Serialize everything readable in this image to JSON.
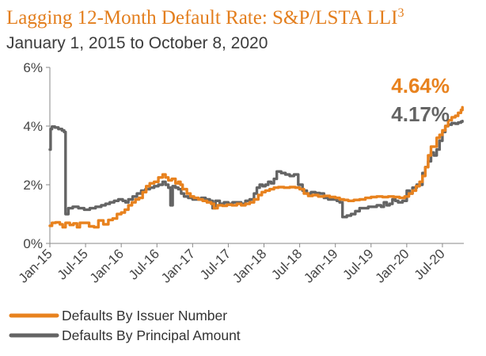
{
  "chart_data": {
    "type": "line",
    "title": "Lagging 12-Month Default Rate: S&P/LSTA LLI",
    "title_superscript": "3",
    "subtitle": "January 1, 2015 to October 8, 2020",
    "xlabel": "",
    "ylabel": "",
    "ylim": [
      0,
      6
    ],
    "y_ticks": [
      "0%",
      "2%",
      "4%",
      "6%"
    ],
    "x_range": [
      2015.0,
      2020.8
    ],
    "x_ticks": [
      {
        "label": "Jan-15",
        "x": 2015.0
      },
      {
        "label": "Jul-15",
        "x": 2015.5
      },
      {
        "label": "Jan-16",
        "x": 2016.0
      },
      {
        "label": "Jul-16",
        "x": 2016.5
      },
      {
        "label": "Jan-17",
        "x": 2017.0
      },
      {
        "label": "Jul-17",
        "x": 2017.5
      },
      {
        "label": "Jan-18",
        "x": 2018.0
      },
      {
        "label": "Jul-18",
        "x": 2018.5
      },
      {
        "label": "Jan-19",
        "x": 2019.0
      },
      {
        "label": "Jul-19",
        "x": 2019.5
      },
      {
        "label": "Jan-20",
        "x": 2020.0
      },
      {
        "label": "Jul-20",
        "x": 2020.5
      }
    ],
    "grid": false,
    "legend_position": "bottom-left",
    "series": [
      {
        "name": "Defaults By Issuer Number",
        "color": "#e8821e",
        "points": [
          [
            2015.0,
            0.6
          ],
          [
            2015.03,
            0.7
          ],
          [
            2015.08,
            0.72
          ],
          [
            2015.14,
            0.65
          ],
          [
            2015.18,
            0.55
          ],
          [
            2015.22,
            0.7
          ],
          [
            2015.28,
            0.63
          ],
          [
            2015.33,
            0.68
          ],
          [
            2015.38,
            0.55
          ],
          [
            2015.42,
            0.7
          ],
          [
            2015.48,
            0.7
          ],
          [
            2015.55,
            0.58
          ],
          [
            2015.62,
            0.55
          ],
          [
            2015.68,
            0.78
          ],
          [
            2015.75,
            0.65
          ],
          [
            2015.82,
            0.8
          ],
          [
            2015.88,
            0.85
          ],
          [
            2015.94,
            1.0
          ],
          [
            2016.0,
            1.05
          ],
          [
            2016.05,
            1.15
          ],
          [
            2016.1,
            1.3
          ],
          [
            2016.15,
            1.4
          ],
          [
            2016.2,
            1.5
          ],
          [
            2016.25,
            1.55
          ],
          [
            2016.3,
            1.75
          ],
          [
            2016.35,
            1.95
          ],
          [
            2016.4,
            2.05
          ],
          [
            2016.46,
            2.1
          ],
          [
            2016.52,
            2.25
          ],
          [
            2016.58,
            2.35
          ],
          [
            2016.62,
            2.25
          ],
          [
            2016.66,
            2.15
          ],
          [
            2016.71,
            2.2
          ],
          [
            2016.76,
            2.05
          ],
          [
            2016.8,
            2.1
          ],
          [
            2016.83,
            2.0
          ],
          [
            2016.86,
            1.85
          ],
          [
            2016.92,
            1.7
          ],
          [
            2016.97,
            1.6
          ],
          [
            2017.02,
            1.55
          ],
          [
            2017.08,
            1.5
          ],
          [
            2017.14,
            1.45
          ],
          [
            2017.2,
            1.4
          ],
          [
            2017.26,
            1.35
          ],
          [
            2017.3,
            1.2
          ],
          [
            2017.35,
            1.3
          ],
          [
            2017.42,
            1.28
          ],
          [
            2017.48,
            1.32
          ],
          [
            2017.55,
            1.3
          ],
          [
            2017.62,
            1.35
          ],
          [
            2017.68,
            1.3
          ],
          [
            2017.74,
            1.35
          ],
          [
            2017.8,
            1.4
          ],
          [
            2017.86,
            1.5
          ],
          [
            2017.92,
            1.65
          ],
          [
            2017.97,
            1.75
          ],
          [
            2018.02,
            1.8
          ],
          [
            2018.08,
            1.85
          ],
          [
            2018.14,
            1.9
          ],
          [
            2018.2,
            1.92
          ],
          [
            2018.28,
            1.9
          ],
          [
            2018.36,
            1.92
          ],
          [
            2018.44,
            1.9
          ],
          [
            2018.5,
            1.85
          ],
          [
            2018.56,
            1.7
          ],
          [
            2018.62,
            1.62
          ],
          [
            2018.68,
            1.65
          ],
          [
            2018.76,
            1.6
          ],
          [
            2018.84,
            1.62
          ],
          [
            2018.92,
            1.58
          ],
          [
            2019.0,
            1.55
          ],
          [
            2019.06,
            1.5
          ],
          [
            2019.12,
            1.48
          ],
          [
            2019.18,
            1.45
          ],
          [
            2019.26,
            1.48
          ],
          [
            2019.34,
            1.5
          ],
          [
            2019.42,
            1.55
          ],
          [
            2019.5,
            1.58
          ],
          [
            2019.58,
            1.6
          ],
          [
            2019.66,
            1.58
          ],
          [
            2019.74,
            1.6
          ],
          [
            2019.82,
            1.58
          ],
          [
            2019.9,
            1.55
          ],
          [
            2019.97,
            1.6
          ],
          [
            2020.03,
            1.7
          ],
          [
            2020.08,
            1.8
          ],
          [
            2020.13,
            1.95
          ],
          [
            2020.18,
            2.1
          ],
          [
            2020.22,
            2.3
          ],
          [
            2020.26,
            2.6
          ],
          [
            2020.3,
            3.0
          ],
          [
            2020.34,
            3.3
          ],
          [
            2020.38,
            3.3
          ],
          [
            2020.42,
            3.6
          ],
          [
            2020.46,
            3.7
          ],
          [
            2020.5,
            3.85
          ],
          [
            2020.54,
            4.0
          ],
          [
            2020.58,
            4.2
          ],
          [
            2020.63,
            4.3
          ],
          [
            2020.68,
            4.35
          ],
          [
            2020.72,
            4.45
          ],
          [
            2020.76,
            4.55
          ],
          [
            2020.78,
            4.64
          ]
        ],
        "end_label": "4.64%"
      },
      {
        "name": "Defaults By Principal Amount",
        "color": "#646464",
        "points": [
          [
            2015.0,
            3.2
          ],
          [
            2015.01,
            3.9
          ],
          [
            2015.03,
            3.98
          ],
          [
            2015.07,
            3.95
          ],
          [
            2015.12,
            3.9
          ],
          [
            2015.17,
            3.85
          ],
          [
            2015.2,
            3.8
          ],
          [
            2015.22,
            1.0
          ],
          [
            2015.26,
            1.2
          ],
          [
            2015.32,
            1.25
          ],
          [
            2015.4,
            1.2
          ],
          [
            2015.48,
            1.15
          ],
          [
            2015.56,
            1.2
          ],
          [
            2015.64,
            1.25
          ],
          [
            2015.72,
            1.3
          ],
          [
            2015.78,
            1.35
          ],
          [
            2015.84,
            1.4
          ],
          [
            2015.9,
            1.45
          ],
          [
            2015.96,
            1.5
          ],
          [
            2016.02,
            1.45
          ],
          [
            2016.06,
            1.4
          ],
          [
            2016.1,
            1.5
          ],
          [
            2016.16,
            1.6
          ],
          [
            2016.22,
            1.7
          ],
          [
            2016.28,
            1.8
          ],
          [
            2016.34,
            1.85
          ],
          [
            2016.4,
            1.9
          ],
          [
            2016.46,
            1.95
          ],
          [
            2016.52,
            2.0
          ],
          [
            2016.58,
            2.1
          ],
          [
            2016.62,
            2.0
          ],
          [
            2016.66,
            1.9
          ],
          [
            2016.69,
            1.3
          ],
          [
            2016.72,
            1.95
          ],
          [
            2016.76,
            1.9
          ],
          [
            2016.8,
            1.85
          ],
          [
            2016.84,
            1.7
          ],
          [
            2016.88,
            1.6
          ],
          [
            2016.94,
            1.55
          ],
          [
            2017.0,
            1.5
          ],
          [
            2017.06,
            1.5
          ],
          [
            2017.12,
            1.55
          ],
          [
            2017.18,
            1.5
          ],
          [
            2017.24,
            1.45
          ],
          [
            2017.28,
            1.2
          ],
          [
            2017.32,
            1.45
          ],
          [
            2017.38,
            1.35
          ],
          [
            2017.44,
            1.4
          ],
          [
            2017.5,
            1.35
          ],
          [
            2017.56,
            1.4
          ],
          [
            2017.62,
            1.4
          ],
          [
            2017.68,
            1.35
          ],
          [
            2017.74,
            1.45
          ],
          [
            2017.8,
            1.5
          ],
          [
            2017.86,
            1.7
          ],
          [
            2017.9,
            1.9
          ],
          [
            2017.94,
            2.0
          ],
          [
            2017.98,
            1.95
          ],
          [
            2018.02,
            2.0
          ],
          [
            2018.06,
            2.1
          ],
          [
            2018.1,
            2.05
          ],
          [
            2018.14,
            2.2
          ],
          [
            2018.18,
            2.45
          ],
          [
            2018.24,
            2.4
          ],
          [
            2018.3,
            2.35
          ],
          [
            2018.36,
            2.3
          ],
          [
            2018.42,
            2.35
          ],
          [
            2018.48,
            2.0
          ],
          [
            2018.54,
            1.8
          ],
          [
            2018.6,
            1.7
          ],
          [
            2018.66,
            1.75
          ],
          [
            2018.72,
            1.72
          ],
          [
            2018.78,
            1.7
          ],
          [
            2018.84,
            1.55
          ],
          [
            2018.9,
            1.5
          ],
          [
            2018.96,
            1.5
          ],
          [
            2019.02,
            1.45
          ],
          [
            2019.06,
            1.4
          ],
          [
            2019.1,
            0.9
          ],
          [
            2019.16,
            0.95
          ],
          [
            2019.22,
            1.0
          ],
          [
            2019.28,
            1.1
          ],
          [
            2019.34,
            1.2
          ],
          [
            2019.4,
            1.2
          ],
          [
            2019.46,
            1.25
          ],
          [
            2019.52,
            1.25
          ],
          [
            2019.58,
            1.3
          ],
          [
            2019.64,
            1.25
          ],
          [
            2019.68,
            1.4
          ],
          [
            2019.72,
            1.3
          ],
          [
            2019.76,
            1.35
          ],
          [
            2019.8,
            1.5
          ],
          [
            2019.84,
            1.45
          ],
          [
            2019.88,
            1.4
          ],
          [
            2019.94,
            1.45
          ],
          [
            2020.0,
            1.8
          ],
          [
            2020.04,
            1.7
          ],
          [
            2020.08,
            1.9
          ],
          [
            2020.14,
            2.0
          ],
          [
            2020.18,
            2.0
          ],
          [
            2020.22,
            2.4
          ],
          [
            2020.26,
            2.6
          ],
          [
            2020.3,
            2.8
          ],
          [
            2020.34,
            3.1
          ],
          [
            2020.38,
            3.0
          ],
          [
            2020.42,
            3.2
          ],
          [
            2020.46,
            3.5
          ],
          [
            2020.5,
            3.8
          ],
          [
            2020.54,
            4.0
          ],
          [
            2020.58,
            4.05
          ],
          [
            2020.63,
            4.1
          ],
          [
            2020.68,
            4.08
          ],
          [
            2020.72,
            4.12
          ],
          [
            2020.76,
            4.15
          ],
          [
            2020.78,
            4.17
          ]
        ],
        "end_label": "4.17%"
      }
    ]
  }
}
